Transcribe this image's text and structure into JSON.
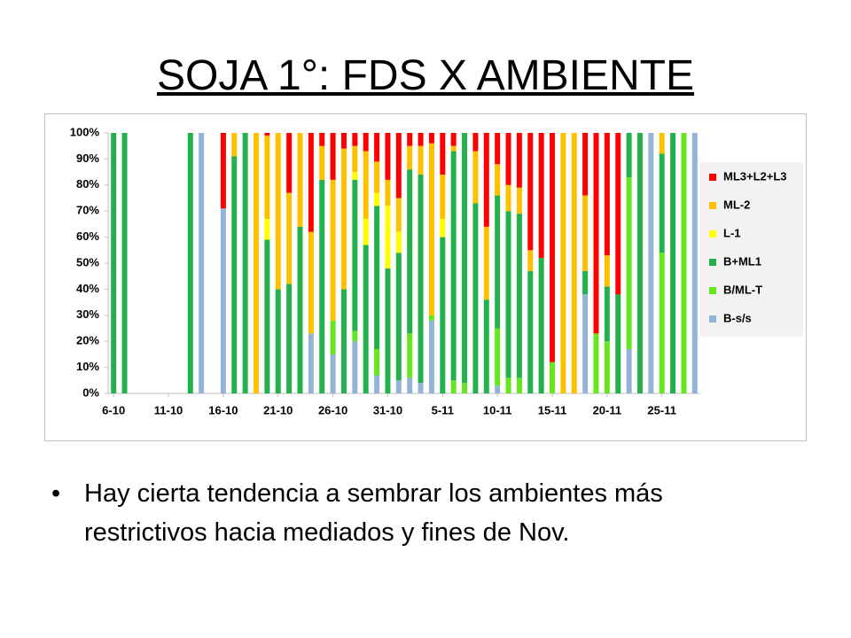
{
  "title": "SOJA 1°: FDS X AMBIENTE",
  "bullet": "Hay cierta tendencia a sembrar los ambientes más restrictivos hacia mediados y fines de Nov.",
  "chart_data": {
    "type": "stacked_bar",
    "categories": [
      "6-10",
      null,
      null,
      null,
      null,
      "11-10",
      null,
      null,
      null,
      null,
      "16-10",
      null,
      null,
      null,
      null,
      "21-10",
      null,
      null,
      null,
      null,
      "26-10",
      null,
      null,
      null,
      null,
      "31-10",
      null,
      null,
      null,
      null,
      "5-11",
      null,
      null,
      null,
      null,
      "10-11",
      null,
      null,
      null,
      null,
      "15-11",
      null,
      null,
      null,
      null,
      "20-11",
      null,
      null,
      null,
      null,
      "25-11",
      null,
      null,
      null
    ],
    "series": [
      {
        "name": "ML3+L2+L3",
        "color": "#ff0000",
        "values": [
          0,
          0,
          0,
          0,
          0,
          0,
          0,
          0,
          0,
          0,
          29,
          0,
          0,
          0,
          1,
          0,
          23,
          0,
          38,
          5,
          18,
          6,
          5,
          7,
          11,
          18,
          25,
          5,
          5,
          4,
          16,
          5,
          0,
          7,
          36,
          12,
          20,
          21,
          45,
          48,
          88,
          0,
          0,
          24,
          77,
          47,
          62,
          0,
          0,
          0,
          0,
          0,
          0,
          0
        ]
      },
      {
        "name": "ML-2",
        "color": "#ffc000",
        "values": [
          0,
          0,
          0,
          0,
          0,
          0,
          0,
          0,
          0,
          0,
          0,
          9,
          0,
          100,
          32,
          60,
          35,
          36,
          39,
          13,
          54,
          54,
          10,
          26,
          12,
          10,
          13,
          9,
          11,
          66,
          17,
          2,
          0,
          20,
          28,
          12,
          10,
          10,
          8,
          0,
          0,
          100,
          100,
          29,
          0,
          12,
          0,
          0,
          0,
          0,
          8,
          0,
          0,
          0
        ]
      },
      {
        "name": "L-1",
        "color": "#ffff00",
        "values": [
          0,
          0,
          0,
          0,
          0,
          0,
          0,
          0,
          0,
          0,
          0,
          0,
          0,
          0,
          8,
          0,
          0,
          0,
          0,
          0,
          0,
          0,
          3,
          10,
          5,
          24,
          8,
          0,
          0,
          0,
          7,
          0,
          0,
          0,
          0,
          0,
          0,
          0,
          0,
          0,
          0,
          0,
          0,
          0,
          0,
          0,
          0,
          0,
          0,
          0,
          0,
          0,
          0,
          0
        ]
      },
      {
        "name": "B+ML1",
        "color": "#22b14c",
        "values": [
          100,
          100,
          0,
          0,
          0,
          0,
          0,
          100,
          0,
          0,
          0,
          91,
          100,
          0,
          59,
          40,
          42,
          64,
          0,
          82,
          0,
          40,
          58,
          57,
          55,
          48,
          49,
          63,
          80,
          0,
          60,
          88,
          96,
          73,
          36,
          51,
          64,
          63,
          47,
          52,
          0,
          0,
          0,
          9,
          0,
          21,
          38,
          17,
          100,
          0,
          38,
          100,
          0,
          0
        ]
      },
      {
        "name": "B/ML-T",
        "color": "#66e61e",
        "values": [
          0,
          0,
          0,
          0,
          0,
          0,
          0,
          0,
          0,
          0,
          0,
          0,
          0,
          0,
          0,
          0,
          0,
          0,
          0,
          0,
          13,
          0,
          4,
          0,
          10,
          0,
          0,
          17,
          0,
          2,
          0,
          5,
          4,
          0,
          0,
          22,
          6,
          6,
          0,
          0,
          12,
          0,
          0,
          0,
          23,
          20,
          0,
          66,
          0,
          0,
          54,
          0,
          100,
          0
        ]
      },
      {
        "name": "B-s/s",
        "color": "#95b3d7",
        "values": [
          0,
          0,
          0,
          0,
          0,
          0,
          0,
          0,
          100,
          0,
          71,
          0,
          0,
          0,
          0,
          0,
          0,
          0,
          23,
          0,
          15,
          0,
          20,
          0,
          7,
          0,
          5,
          6,
          4,
          28,
          0,
          0,
          0,
          0,
          0,
          3,
          0,
          0,
          0,
          0,
          0,
          0,
          0,
          38,
          0,
          0,
          0,
          17,
          0,
          100,
          0,
          0,
          0,
          100
        ]
      }
    ],
    "ylim": [
      0,
      100
    ],
    "yticks": [
      {
        "value": 0,
        "label": "0%"
      },
      {
        "value": 10,
        "label": "10%"
      },
      {
        "value": 20,
        "label": "20%"
      },
      {
        "value": 30,
        "label": "30%"
      },
      {
        "value": 40,
        "label": "40%"
      },
      {
        "value": 50,
        "label": "50%"
      },
      {
        "value": 60,
        "label": "60%"
      },
      {
        "value": 70,
        "label": "70%"
      },
      {
        "value": 80,
        "label": "80%"
      },
      {
        "value": 90,
        "label": "90%"
      },
      {
        "value": 100,
        "label": "100%"
      }
    ],
    "legend": "right"
  }
}
